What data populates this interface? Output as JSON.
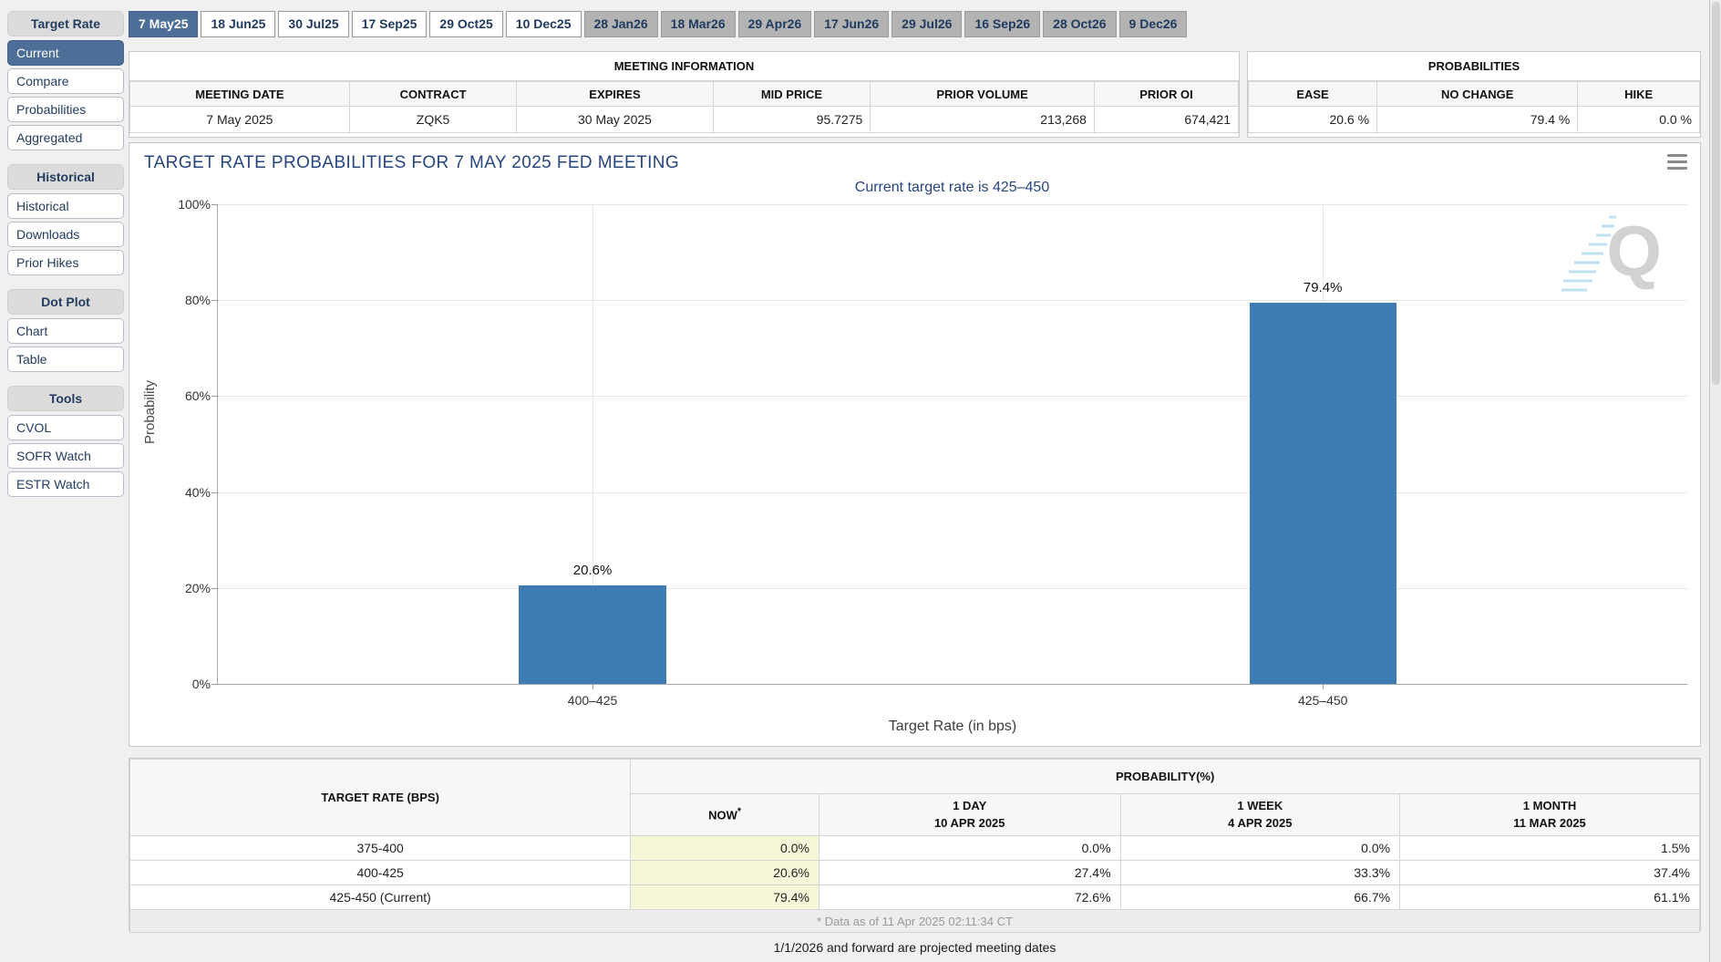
{
  "colors": {
    "accent_blue": "#4d6e96",
    "bar_blue": "#3e7cb3",
    "highlight_yellow": "#f6f6d8",
    "navy_text": "#233c5f"
  },
  "tabs": {
    "items": [
      {
        "label": "7 May25"
      },
      {
        "label": "18 Jun25"
      },
      {
        "label": "30 Jul25"
      },
      {
        "label": "17 Sep25"
      },
      {
        "label": "29 Oct25"
      },
      {
        "label": "10 Dec25"
      },
      {
        "label": "28 Jan26"
      },
      {
        "label": "18 Mar26"
      },
      {
        "label": "29 Apr26"
      },
      {
        "label": "17 Jun26"
      },
      {
        "label": "29 Jul26"
      },
      {
        "label": "16 Sep26"
      },
      {
        "label": "28 Oct26"
      },
      {
        "label": "9 Dec26"
      }
    ]
  },
  "sidebar": {
    "sections": [
      {
        "header": "Target Rate",
        "items": [
          {
            "label": "Current"
          },
          {
            "label": "Compare"
          },
          {
            "label": "Probabilities"
          },
          {
            "label": "Aggregated"
          }
        ]
      },
      {
        "header": "Historical",
        "items": [
          {
            "label": "Historical"
          },
          {
            "label": "Downloads"
          },
          {
            "label": "Prior Hikes"
          }
        ]
      },
      {
        "header": "Dot Plot",
        "items": [
          {
            "label": "Chart"
          },
          {
            "label": "Table"
          }
        ]
      },
      {
        "header": "Tools",
        "items": [
          {
            "label": "CVOL"
          },
          {
            "label": "SOFR Watch"
          },
          {
            "label": "ESTR Watch"
          }
        ]
      }
    ]
  },
  "meeting_info": {
    "title": "MEETING INFORMATION",
    "columns": [
      "MEETING DATE",
      "CONTRACT",
      "EXPIRES",
      "MID PRICE",
      "PRIOR VOLUME",
      "PRIOR OI"
    ],
    "values": [
      "7 May 2025",
      "ZQK5",
      "30 May 2025",
      "95.7275",
      "213,268",
      "674,421"
    ]
  },
  "probabilities_panel": {
    "title": "PROBABILITIES",
    "columns": [
      "EASE",
      "NO CHANGE",
      "HIKE"
    ],
    "values": [
      "20.6 %",
      "79.4 %",
      "0.0 %"
    ]
  },
  "chart_data": {
    "type": "bar",
    "title": "TARGET RATE PROBABILITIES FOR 7 MAY 2025 FED MEETING",
    "subtitle": "Current target rate is 425–450",
    "categories": [
      "400–425",
      "425–450"
    ],
    "values": [
      20.6,
      79.4
    ],
    "value_labels": [
      "20.6%",
      "79.4%"
    ],
    "xlabel": "Target Rate (in bps)",
    "ylabel": "Probability",
    "ylim": [
      0,
      100
    ],
    "ytick_labels": [
      "100%",
      "80%",
      "60%",
      "40%",
      "20%",
      "0%"
    ],
    "grid": true,
    "legend": "none",
    "bar_color": "#3e7cb3"
  },
  "prob_table": {
    "col1_header": "TARGET RATE (BPS)",
    "group_header": "PROBABILITY(%)",
    "sub_headers": [
      {
        "line1": "NOW",
        "sup": "*",
        "line2": ""
      },
      {
        "line1": "1 DAY",
        "line2": "10 APR 2025"
      },
      {
        "line1": "1 WEEK",
        "line2": "4 APR 2025"
      },
      {
        "line1": "1 MONTH",
        "line2": "11 MAR 2025"
      }
    ],
    "rows": [
      {
        "rate": "375-400",
        "now": "0.0%",
        "day": "0.0%",
        "week": "0.0%",
        "month": "1.5%"
      },
      {
        "rate": "400-425",
        "now": "20.6%",
        "day": "27.4%",
        "week": "33.3%",
        "month": "37.4%"
      },
      {
        "rate": "425-450 (Current)",
        "now": "79.4%",
        "day": "72.6%",
        "week": "66.7%",
        "month": "61.1%"
      }
    ],
    "footnote": "* Data as of 11 Apr 2025 02:11:34 CT"
  },
  "note": "1/1/2026 and forward are projected meeting dates"
}
